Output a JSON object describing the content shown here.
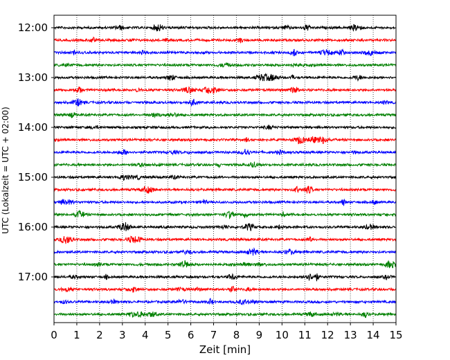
{
  "chart_data": {
    "type": "line",
    "title": "",
    "xlabel": "Zeit  [min]",
    "ylabel": "UTC (Lokalzeit = UTC + 02:00)",
    "xlim": [
      0,
      15
    ],
    "x_ticks": [
      "0",
      "1",
      "2",
      "3",
      "4",
      "5",
      "6",
      "7",
      "8",
      "9",
      "10",
      "11",
      "12",
      "13",
      "14",
      "15"
    ],
    "y_tick_labels": [
      "12:00",
      "13:00",
      "14:00",
      "15:00",
      "16:00",
      "17:00"
    ],
    "grid": "vertical dotted",
    "trace_start": "12:00",
    "trace_interval_min": 15,
    "trace_count": 24,
    "trace_colors": [
      "#000000",
      "#ff0000",
      "#0000ff",
      "#008000"
    ]
  }
}
